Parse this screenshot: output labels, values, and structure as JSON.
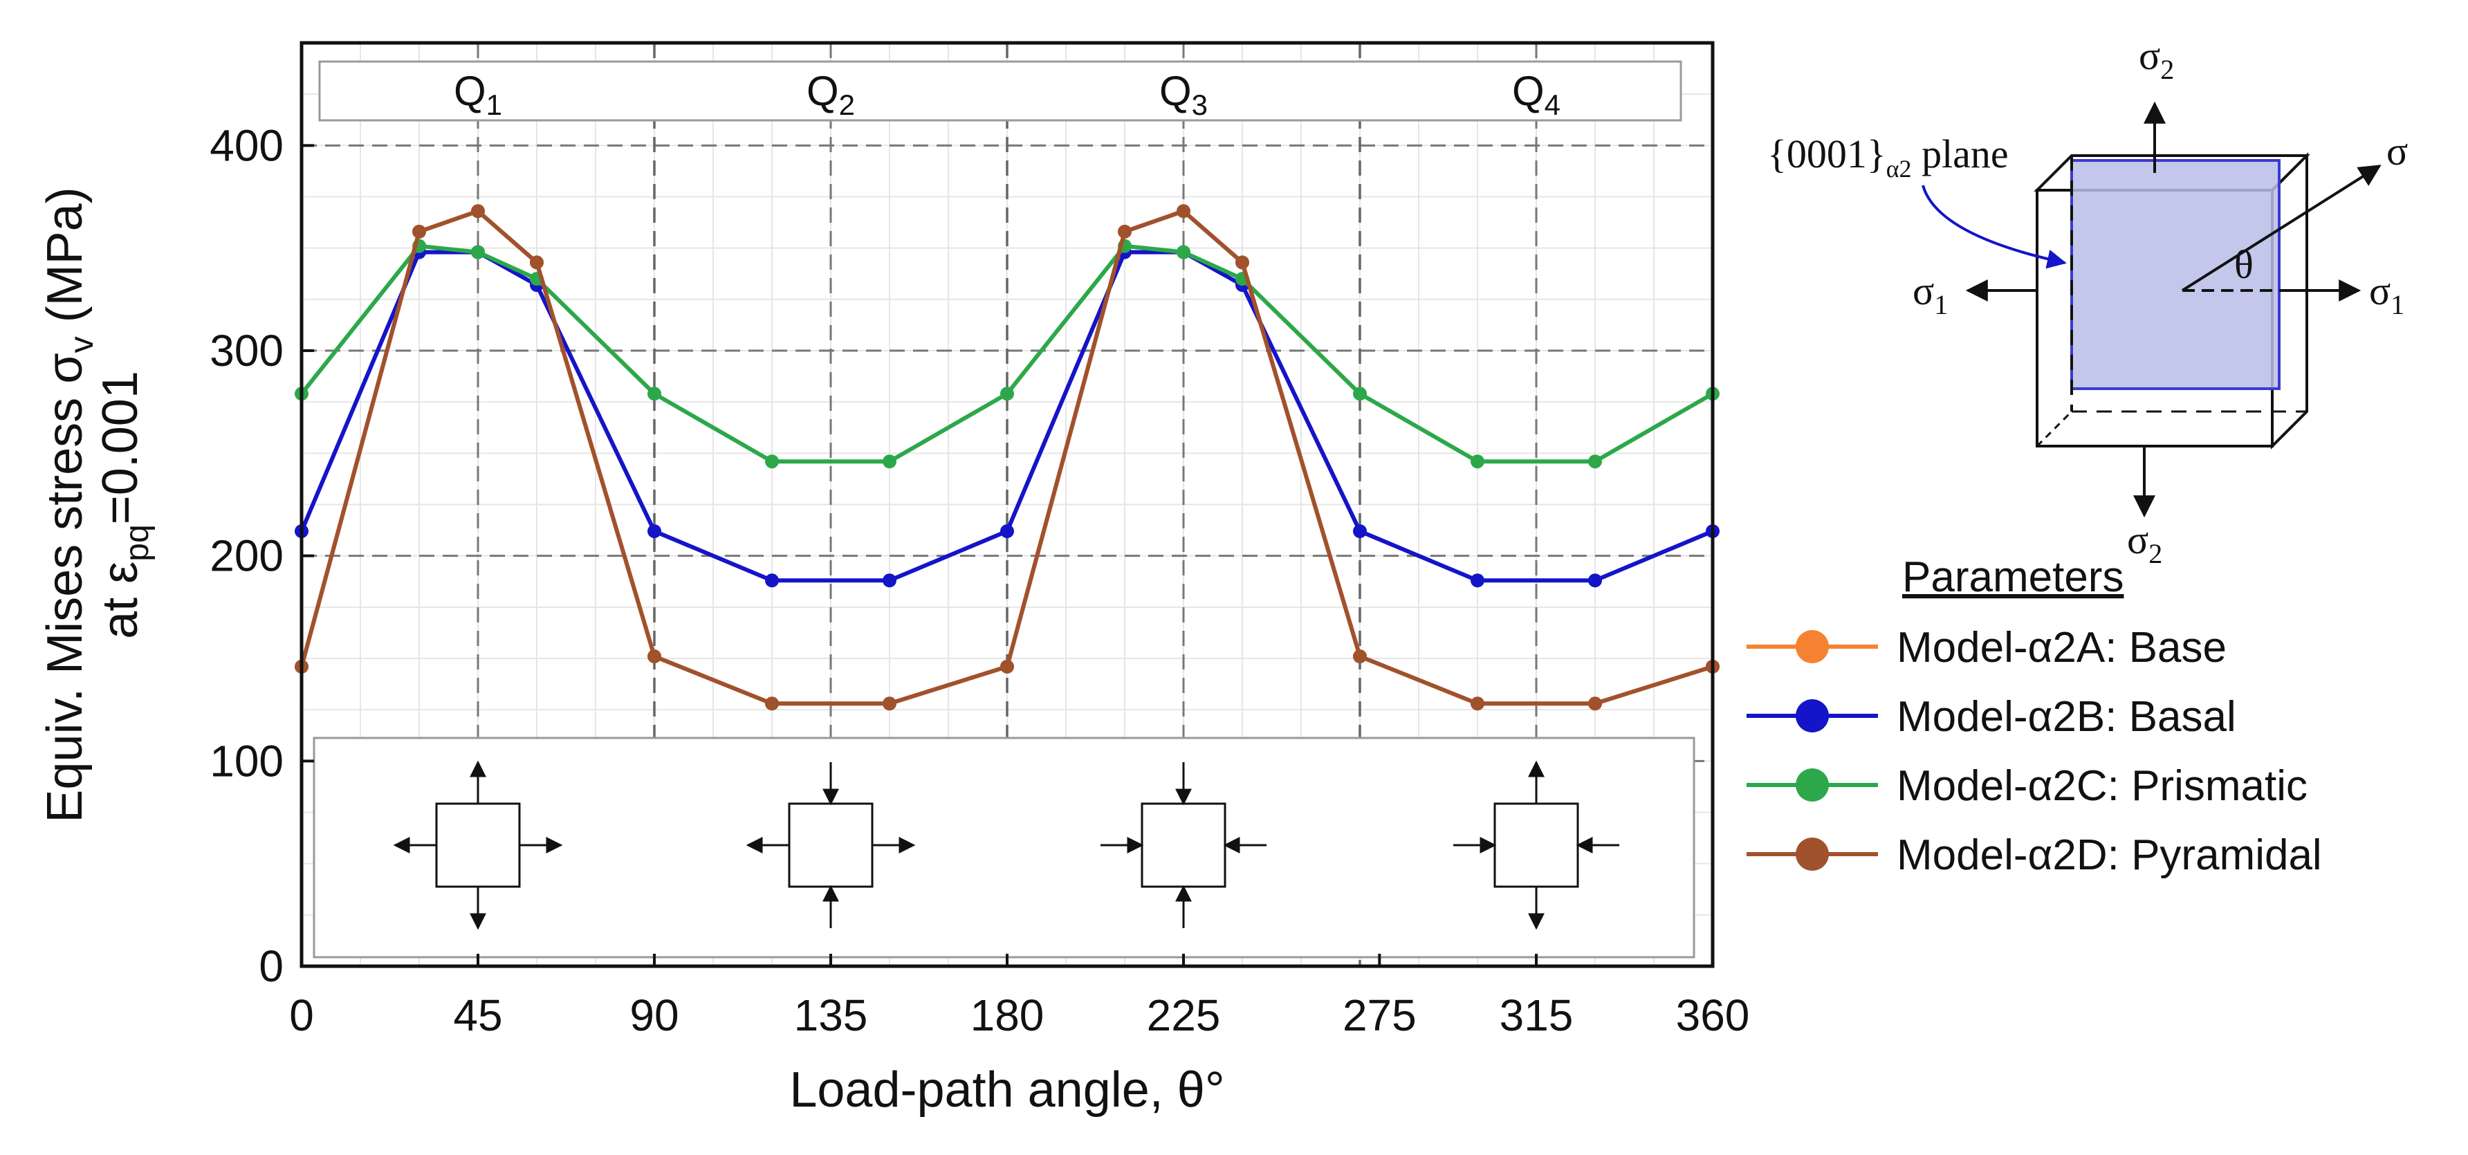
{
  "chart_data": {
    "type": "line",
    "xlabel": "Load-path angle, θ°",
    "ylabel_line1": "Equiv. Mises stress σ",
    "ylabel_line1_sub": "v",
    "ylabel_line1_unit": " (MPa)",
    "ylabel_line2": "at ε",
    "ylabel_line2_sub": "pq",
    "ylabel_line2_rest": "=0.001",
    "xlim": [
      0,
      360
    ],
    "ylim": [
      0,
      450
    ],
    "x_ticks": [
      0,
      45,
      90,
      135,
      180,
      225,
      275,
      315,
      360
    ],
    "y_ticks": [
      0,
      100,
      200,
      300,
      400
    ],
    "grid": true,
    "quadrants": [
      {
        "label": "Q",
        "sub": "1"
      },
      {
        "label": "Q",
        "sub": "2"
      },
      {
        "label": "Q",
        "sub": "3"
      },
      {
        "label": "Q",
        "sub": "4"
      }
    ],
    "x": [
      0,
      30,
      45,
      60,
      90,
      120,
      150,
      180,
      210,
      225,
      240,
      270,
      300,
      330,
      360
    ],
    "series": [
      {
        "name": "Model-α2A: Base",
        "color": "#f58232",
        "values": [
          146,
          358,
          368,
          343,
          151,
          128,
          128,
          146,
          358,
          368,
          343,
          151,
          128,
          128,
          146
        ]
      },
      {
        "name": "Model-α2B: Basal",
        "color": "#1414c8",
        "values": [
          212,
          348,
          348,
          332,
          212,
          188,
          188,
          212,
          348,
          348,
          332,
          212,
          188,
          188,
          212
        ]
      },
      {
        "name": "Model-α2C: Prismatic",
        "color": "#2ca84a",
        "values": [
          279,
          351,
          348,
          335,
          279,
          246,
          246,
          279,
          351,
          348,
          335,
          279,
          246,
          246,
          279
        ]
      },
      {
        "name": "Model-α2D: Pyramidal",
        "color": "#a0522d",
        "values": [
          146,
          358,
          368,
          343,
          151,
          128,
          128,
          146,
          358,
          368,
          343,
          151,
          128,
          128,
          146
        ]
      }
    ],
    "legend_title": "Parameters",
    "legend_position": "right",
    "inset_load_states": [
      "tension-tension",
      "tension-compression",
      "compression-compression",
      "compression-tension"
    ]
  },
  "diagram": {
    "plane_label": "{0001}",
    "plane_sub": "α2",
    "plane_word": " plane",
    "sigma": "σ",
    "sigma1": "σ",
    "sigma1_sub": "1",
    "sigma2": "σ",
    "sigma2_sub": "2",
    "theta": "θ"
  }
}
